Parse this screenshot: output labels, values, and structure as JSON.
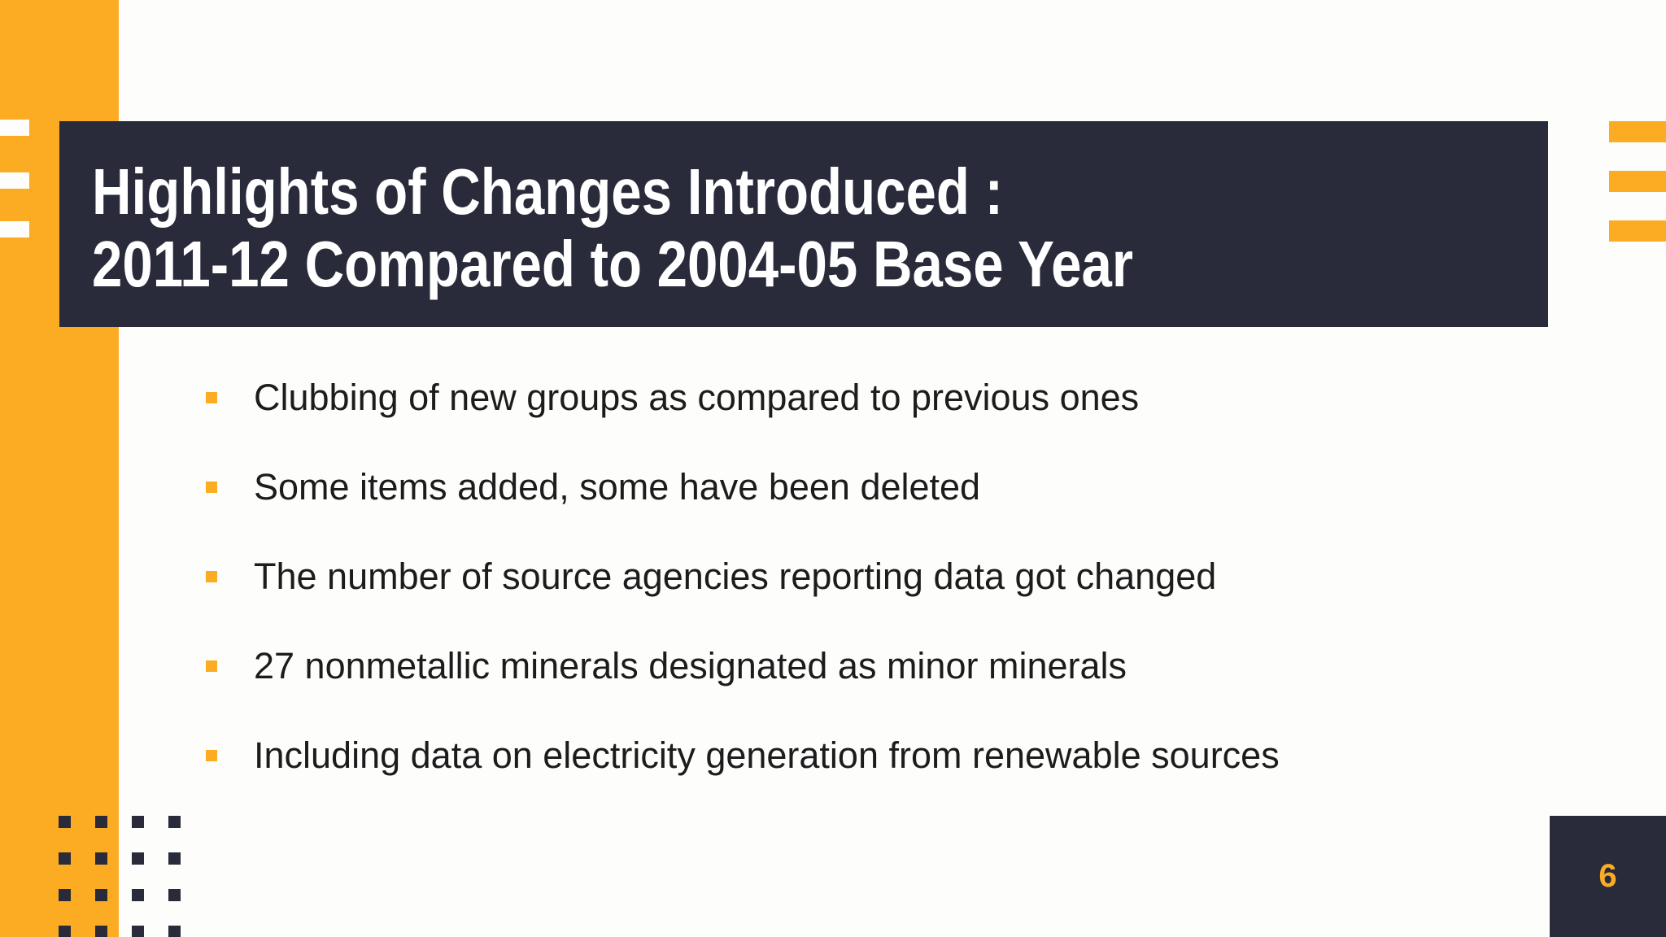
{
  "title": {
    "line1": "Highlights of Changes Introduced :",
    "line2": "2011-12 Compared to 2004-05 Base Year"
  },
  "bullets": [
    "Clubbing of new groups as compared to previous ones",
    "Some items added, some have been deleted",
    "The number of source agencies reporting data got changed",
    "27 nonmetallic minerals designated as minor minerals",
    "Including data on electricity generation from renewable sources"
  ],
  "page_number": "6",
  "colors": {
    "accent_orange": "#FBAC22",
    "dark_navy": "#292B3B",
    "background": "#FDFDFC",
    "body_text": "#1C1C1C",
    "title_text": "#FFFFFF"
  }
}
